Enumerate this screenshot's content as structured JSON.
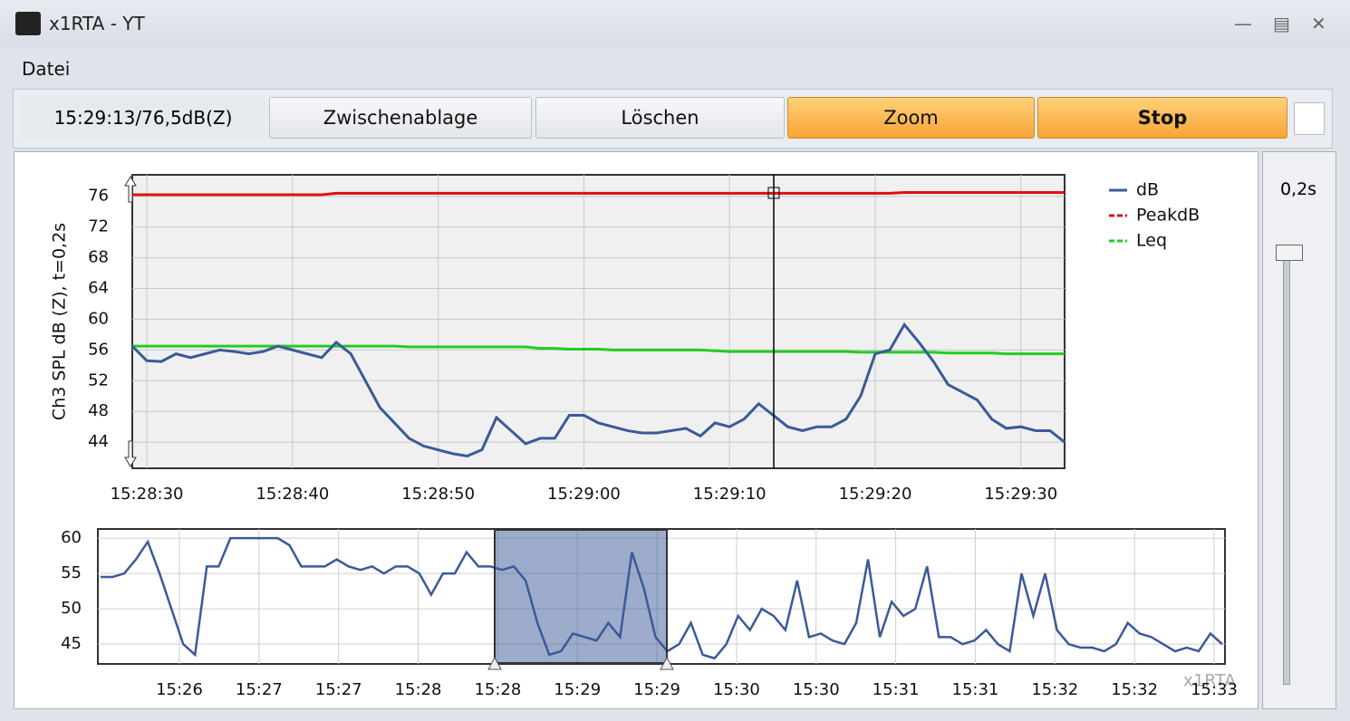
{
  "window": {
    "title": "x1RTA - YT",
    "menu": [
      "Datei"
    ]
  },
  "toolbar": {
    "status": "15:29:13/76,5dB(Z)",
    "buttons": [
      "Zwischenablage",
      "Löschen",
      "Zoom",
      "Stop"
    ]
  },
  "slider_label": "0,2s",
  "chart_data": [
    {
      "type": "line",
      "y_label": "Ch3 SPL dB (Z), t=0,2s",
      "x": [
        "15:28:29",
        "15:28:30",
        "15:28:31",
        "15:28:32",
        "15:28:33",
        "15:28:34",
        "15:28:35",
        "15:28:36",
        "15:28:37",
        "15:28:38",
        "15:28:39",
        "15:28:40",
        "15:28:41",
        "15:28:42",
        "15:28:43",
        "15:28:44",
        "15:28:45",
        "15:28:46",
        "15:28:47",
        "15:28:48",
        "15:28:49",
        "15:28:50",
        "15:28:51",
        "15:28:52",
        "15:28:53",
        "15:28:54",
        "15:28:55",
        "15:28:56",
        "15:28:57",
        "15:28:58",
        "15:28:59",
        "15:29:00",
        "15:29:01",
        "15:29:02",
        "15:29:03",
        "15:29:04",
        "15:29:05",
        "15:29:06",
        "15:29:07",
        "15:29:08",
        "15:29:09",
        "15:29:10",
        "15:29:11",
        "15:29:12",
        "15:29:13",
        "15:29:14",
        "15:29:15",
        "15:29:16",
        "15:29:17",
        "15:29:18",
        "15:29:19",
        "15:29:20",
        "15:29:21",
        "15:29:22",
        "15:29:23",
        "15:29:24",
        "15:29:25",
        "15:29:26",
        "15:29:27",
        "15:29:28",
        "15:29:29",
        "15:29:30",
        "15:29:31",
        "15:29:32",
        "15:29:33"
      ],
      "series": [
        {
          "name": "dB",
          "color": "#3b5a98",
          "values": [
            56.5,
            54.6,
            54.5,
            55.5,
            55,
            55.5,
            56,
            55.8,
            55.5,
            55.8,
            56.5,
            56,
            55.5,
            55,
            57,
            55.5,
            52,
            48.5,
            46.5,
            44.5,
            43.5,
            43,
            42.5,
            42.2,
            43,
            47.2,
            45.5,
            43.8,
            44.5,
            44.5,
            47.5,
            47.5,
            46.5,
            46,
            45.5,
            45.2,
            45.2,
            45.5,
            45.8,
            44.8,
            46.5,
            46,
            47,
            49,
            47.5,
            46,
            45.5,
            46,
            46,
            47,
            50,
            55.5,
            56,
            59.3,
            57,
            54.5,
            51.5,
            50.5,
            49.5,
            47,
            45.8,
            46,
            45.5,
            45.5,
            44
          ]
        },
        {
          "name": "PeakdB",
          "color": "#e01010",
          "values": [
            76.2,
            76.2,
            76.2,
            76.2,
            76.2,
            76.2,
            76.2,
            76.2,
            76.2,
            76.2,
            76.2,
            76.2,
            76.2,
            76.2,
            76.4,
            76.4,
            76.4,
            76.4,
            76.4,
            76.4,
            76.4,
            76.4,
            76.4,
            76.4,
            76.4,
            76.4,
            76.4,
            76.4,
            76.4,
            76.4,
            76.4,
            76.4,
            76.4,
            76.4,
            76.4,
            76.4,
            76.4,
            76.4,
            76.4,
            76.4,
            76.4,
            76.4,
            76.4,
            76.4,
            76.4,
            76.4,
            76.4,
            76.4,
            76.4,
            76.4,
            76.4,
            76.4,
            76.4,
            76.5,
            76.5,
            76.5,
            76.5,
            76.5,
            76.5,
            76.5,
            76.5,
            76.5,
            76.5,
            76.5,
            76.5
          ]
        },
        {
          "name": "Leq",
          "color": "#22cc22",
          "values": [
            56.5,
            56.5,
            56.5,
            56.5,
            56.5,
            56.5,
            56.5,
            56.5,
            56.5,
            56.5,
            56.5,
            56.5,
            56.5,
            56.5,
            56.5,
            56.5,
            56.5,
            56.5,
            56.5,
            56.4,
            56.4,
            56.4,
            56.4,
            56.4,
            56.4,
            56.4,
            56.4,
            56.4,
            56.2,
            56.2,
            56.1,
            56.1,
            56.1,
            56,
            56,
            56,
            56,
            56,
            56,
            56,
            55.9,
            55.8,
            55.8,
            55.8,
            55.8,
            55.8,
            55.8,
            55.8,
            55.8,
            55.8,
            55.7,
            55.7,
            55.7,
            55.7,
            55.7,
            55.7,
            55.6,
            55.6,
            55.6,
            55.6,
            55.5,
            55.5,
            55.5,
            55.5,
            55.5
          ]
        }
      ],
      "xlim": [
        "15:28:29",
        "15:29:33"
      ],
      "xticks": [
        "15:28:30",
        "15:28:40",
        "15:28:50",
        "15:29:00",
        "15:29:10",
        "15:29:20",
        "15:29:30"
      ],
      "ylim": [
        40.6,
        78.8
      ],
      "yticks": [
        44,
        48,
        52,
        56,
        60,
        64,
        68,
        72,
        76
      ],
      "grid": true,
      "legend": "right"
    },
    {
      "type": "line",
      "color": "#3b5a98",
      "watermark": "x1RTA",
      "values": [
        54.5,
        54.5,
        55,
        57,
        59.5,
        55,
        50,
        45,
        43.5,
        56,
        56,
        60,
        60,
        60,
        60,
        60,
        59,
        56,
        56,
        56,
        57,
        56,
        55.5,
        56,
        55,
        56,
        56,
        55,
        52,
        55,
        55,
        58,
        56,
        56,
        55.5,
        56,
        54,
        48,
        43.5,
        44,
        46.5,
        46,
        45.5,
        48,
        46,
        58,
        53,
        46,
        44,
        45,
        48,
        43.5,
        43,
        45,
        49,
        47,
        50,
        49,
        47,
        54,
        46,
        46.5,
        45.5,
        45,
        48,
        57,
        46,
        51,
        49,
        50,
        56,
        46,
        46,
        45,
        45.5,
        47,
        45,
        44,
        55,
        49,
        55,
        47,
        45,
        44.5,
        44.5,
        44,
        45,
        48,
        46.5,
        46,
        45,
        44,
        44.5,
        44,
        46.5,
        45
      ],
      "ylim": [
        42.2,
        61.3
      ],
      "yticks": [
        45,
        50,
        55,
        60
      ],
      "xticks": [
        "15:26",
        "15:27",
        "15:27",
        "15:28",
        "15:28",
        "15:29",
        "15:29",
        "15:30",
        "15:30",
        "15:31",
        "15:31",
        "15:32",
        "15:32",
        "15:33"
      ],
      "grid": true
    }
  ]
}
